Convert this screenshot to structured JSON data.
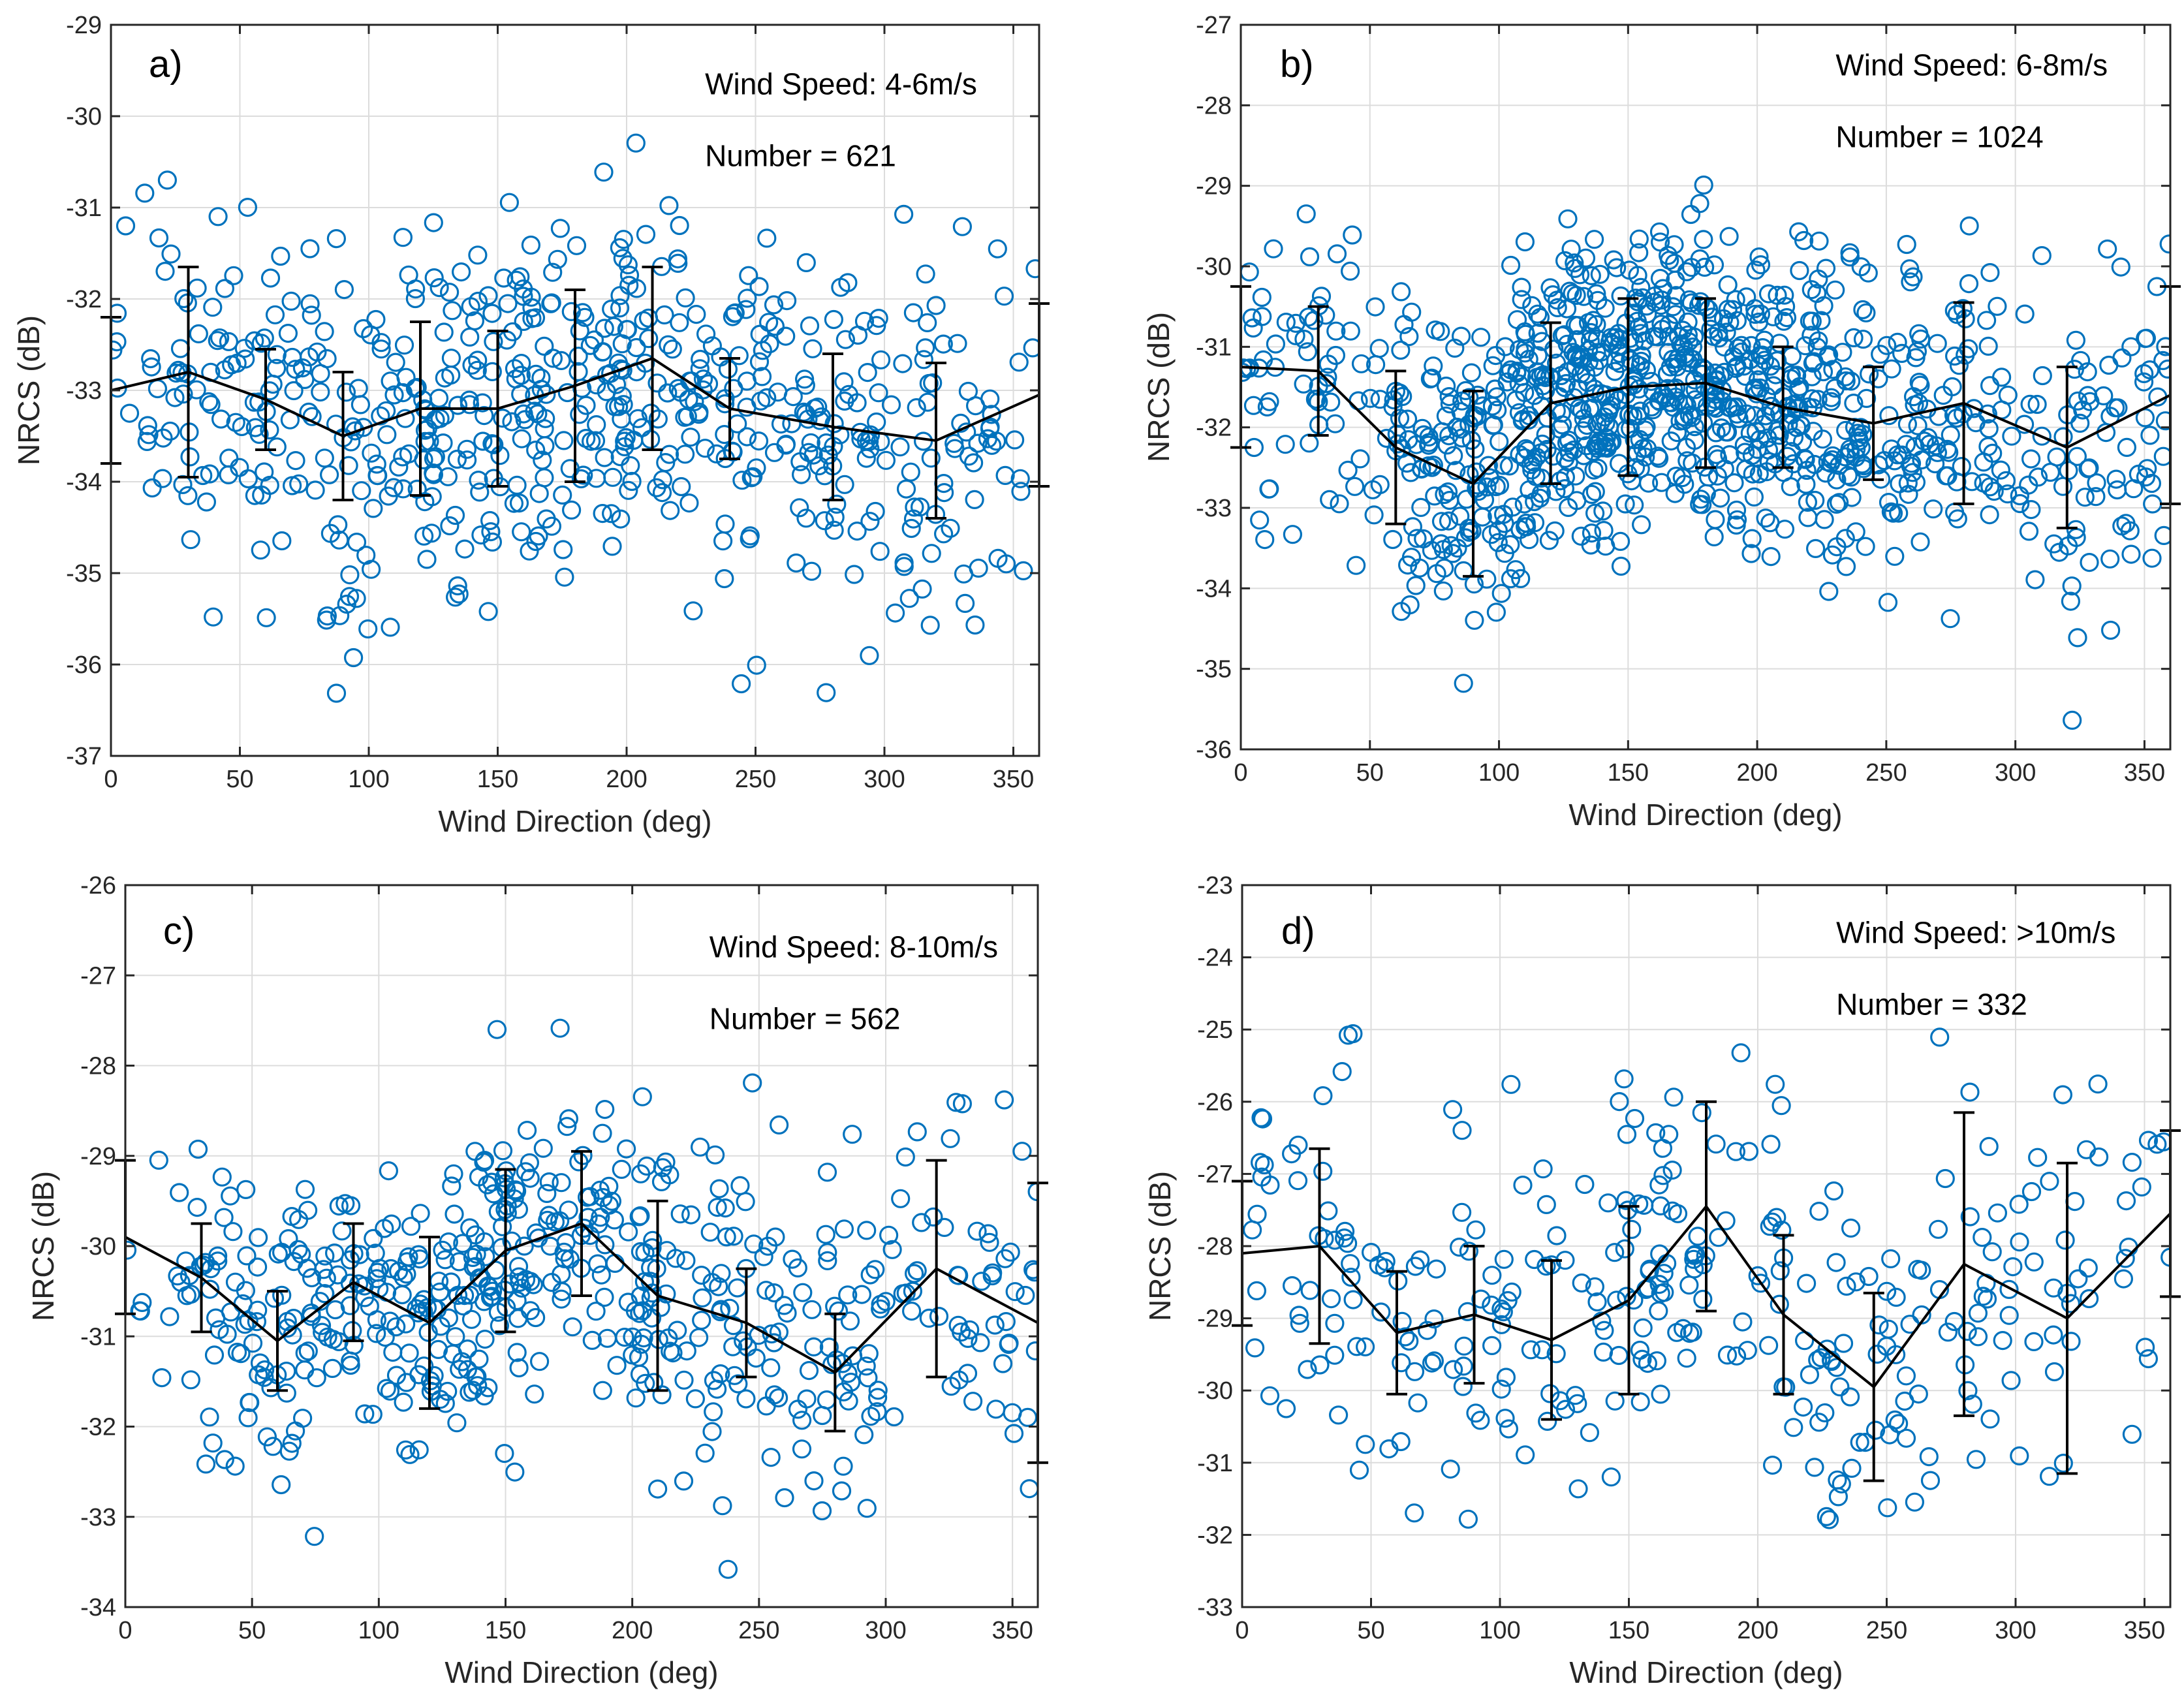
{
  "colors": {
    "marker": "#0072BD",
    "line": "#000000",
    "grid": "#dcdcdc",
    "axis": "#262626"
  },
  "chart_data": [
    {
      "type": "scatter",
      "panel_label": "a)",
      "annotation": "Wind Speed: 4-6m/s",
      "count_label": "Number = 621",
      "xlabel": "Wind Direction (deg)",
      "ylabel": "NRCS (dB)",
      "xlim": [
        0,
        360
      ],
      "ylim": [
        -37,
        -29
      ],
      "xticks": [
        0,
        50,
        100,
        150,
        200,
        250,
        300,
        350
      ],
      "yticks": [
        -37,
        -36,
        -35,
        -34,
        -33,
        -32,
        -31,
        -30,
        -29
      ],
      "scatter_count": 621,
      "scatter_center": 170,
      "scatter_spread": 85,
      "scatter_dy_spread": 0.95,
      "mean_x": [
        0,
        30,
        60,
        90,
        120,
        150,
        180,
        210,
        240,
        280,
        320,
        360
      ],
      "mean_y": [
        -33.0,
        -32.8,
        -33.1,
        -33.5,
        -33.2,
        -33.2,
        -32.95,
        -32.65,
        -33.2,
        -33.4,
        -33.55,
        -33.05
      ],
      "err": [
        0.8,
        1.15,
        0.55,
        0.7,
        0.95,
        0.85,
        1.05,
        1.0,
        0.55,
        0.8,
        0.85,
        1.0
      ]
    },
    {
      "type": "scatter",
      "panel_label": "b)",
      "annotation": "Wind Speed: 6-8m/s",
      "count_label": "Number = 1024",
      "xlabel": "Wind Direction (deg)",
      "ylabel": "NRCS (dB)",
      "xlim": [
        0,
        360
      ],
      "ylim": [
        -36,
        -27
      ],
      "xticks": [
        0,
        50,
        100,
        150,
        200,
        250,
        300,
        350
      ],
      "yticks": [
        -36,
        -35,
        -34,
        -33,
        -32,
        -31,
        -30,
        -29,
        -28,
        -27
      ],
      "scatter_count": 1024,
      "scatter_center": 165,
      "scatter_spread": 55,
      "scatter_dy_spread": 0.95,
      "mean_x": [
        0,
        30,
        60,
        90,
        120,
        150,
        180,
        210,
        245,
        280,
        320,
        360
      ],
      "mean_y": [
        -31.25,
        -31.3,
        -32.25,
        -32.7,
        -31.7,
        -31.5,
        -31.45,
        -31.75,
        -31.95,
        -31.7,
        -32.25,
        -31.6
      ],
      "err": [
        1.0,
        0.8,
        0.95,
        1.15,
        1.0,
        1.1,
        1.05,
        0.75,
        0.7,
        1.25,
        1.0,
        1.35
      ]
    },
    {
      "type": "scatter",
      "panel_label": "c)",
      "annotation": "Wind Speed: 8-10m/s",
      "count_label": "Number = 562",
      "xlabel": "Wind Direction (deg)",
      "ylabel": "NRCS (dB)",
      "xlim": [
        0,
        360
      ],
      "ylim": [
        -34,
        -26
      ],
      "xticks": [
        0,
        50,
        100,
        150,
        200,
        250,
        300,
        350
      ],
      "yticks": [
        -34,
        -33,
        -32,
        -31,
        -30,
        -29,
        -28,
        -27,
        -26
      ],
      "scatter_count": 562,
      "scatter_center": 150,
      "scatter_spread": 75,
      "scatter_dy_spread": 0.85,
      "mean_x": [
        0,
        30,
        60,
        90,
        120,
        150,
        180,
        210,
        245,
        280,
        320,
        360
      ],
      "mean_y": [
        -29.9,
        -30.35,
        -31.05,
        -30.4,
        -30.85,
        -30.05,
        -29.75,
        -30.55,
        -30.85,
        -31.4,
        -30.25,
        -30.85
      ],
      "err": [
        0.85,
        0.6,
        0.55,
        0.65,
        0.95,
        0.9,
        0.8,
        1.05,
        0.6,
        0.65,
        1.2,
        1.55
      ]
    },
    {
      "type": "scatter",
      "panel_label": "d)",
      "annotation": "Wind Speed: >10m/s",
      "count_label": "Number = 332",
      "xlabel": "Wind Direction (deg)",
      "ylabel": "NRCS (dB)",
      "xlim": [
        0,
        360
      ],
      "ylim": [
        -33,
        -23
      ],
      "xticks": [
        0,
        50,
        100,
        150,
        200,
        250,
        300,
        350
      ],
      "yticks": [
        -33,
        -32,
        -31,
        -30,
        -29,
        -28,
        -27,
        -26,
        -25,
        -24,
        -23
      ],
      "scatter_count": 332,
      "scatter_center": 170,
      "scatter_spread": 110,
      "scatter_dy_spread": 1.25,
      "mean_x": [
        0,
        30,
        60,
        90,
        120,
        150,
        180,
        210,
        245,
        280,
        320,
        360
      ],
      "mean_y": [
        -28.1,
        -28.0,
        -29.2,
        -28.95,
        -29.3,
        -28.75,
        -27.45,
        -28.95,
        -29.95,
        -28.25,
        -29.0,
        -27.55
      ],
      "err": [
        1.0,
        1.35,
        0.85,
        0.95,
        1.1,
        1.3,
        1.45,
        1.1,
        1.3,
        2.1,
        2.15,
        1.15
      ]
    }
  ]
}
